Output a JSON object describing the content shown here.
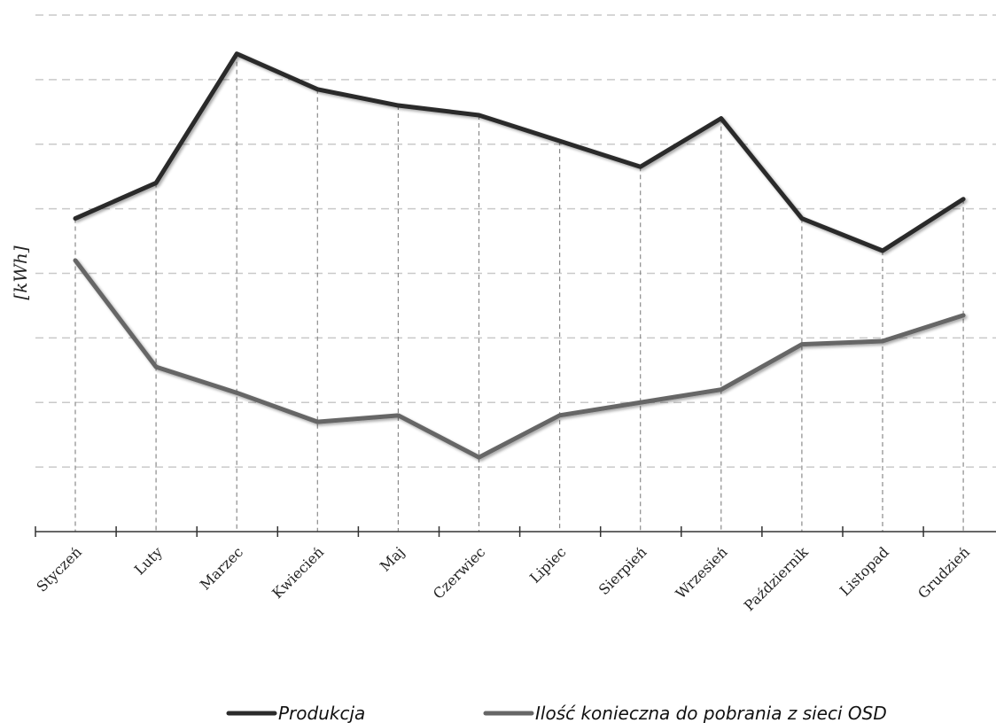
{
  "chart_data": {
    "type": "line",
    "title": "",
    "xlabel": "",
    "ylabel": "[kWh]",
    "categories": [
      "Styczeń",
      "Luty",
      "Marzec",
      "Kwiecień",
      "Maj",
      "Czerwiec",
      "Lipiec",
      "Sierpień",
      "Wrzesień",
      "Październik",
      "Listopad",
      "Grudzień"
    ],
    "ylim": [
      0,
      8
    ],
    "grid": true,
    "legend_position": "bottom",
    "series": [
      {
        "name": "Produkcja",
        "color": "#2b2b2b",
        "values": [
          4.85,
          5.4,
          7.4,
          6.85,
          6.6,
          6.45,
          6.05,
          5.65,
          6.4,
          4.85,
          4.35,
          5.15
        ]
      },
      {
        "name": "Ilość konieczna do pobrania z sieci OSD",
        "color": "#666666",
        "values": [
          4.2,
          2.55,
          2.15,
          1.7,
          1.8,
          1.15,
          1.8,
          2.0,
          2.2,
          2.9,
          2.95,
          3.35
        ]
      }
    ]
  }
}
